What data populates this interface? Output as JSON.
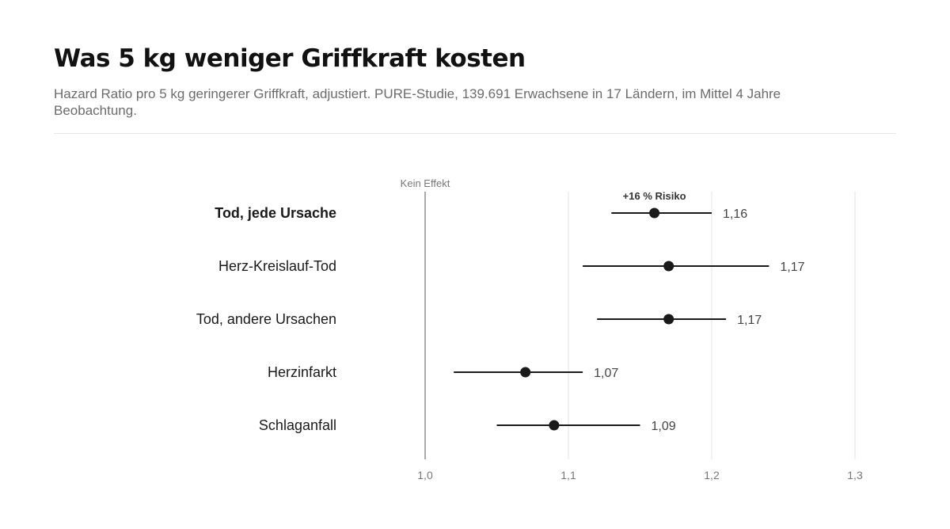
{
  "header": {
    "title": "Was 5 kg weniger Griffkraft kosten",
    "subtitle": "Hazard Ratio pro 5 kg geringerer Griffkraft, adjustiert. PURE-Studie, 139.691 Erwachsene in 17 Ländern, im Mittel 4 Jahre Beobachtung."
  },
  "chart_data": {
    "type": "forest",
    "xlim": [
      1.0,
      1.3
    ],
    "xticks": [
      1.0,
      1.1,
      1.2,
      1.3
    ],
    "xtick_labels": [
      "1,0",
      "1,1",
      "1,2",
      "1,3"
    ],
    "reference_line": {
      "value": 1.0,
      "label": "Kein Effekt"
    },
    "grid": true,
    "rows": [
      {
        "label": "Tod, jede Ursache",
        "estimate": 1.16,
        "lower": 1.13,
        "upper": 1.2,
        "value_label": "1,16",
        "highlight": true,
        "annotation": "+16 % Risiko"
      },
      {
        "label": "Herz-Kreislauf-Tod",
        "estimate": 1.17,
        "lower": 1.11,
        "upper": 1.24,
        "value_label": "1,17",
        "highlight": false
      },
      {
        "label": "Tod, andere Ursachen",
        "estimate": 1.17,
        "lower": 1.12,
        "upper": 1.21,
        "value_label": "1,17",
        "highlight": false
      },
      {
        "label": "Herzinfarkt",
        "estimate": 1.07,
        "lower": 1.02,
        "upper": 1.11,
        "value_label": "1,07",
        "highlight": false
      },
      {
        "label": "Schlaganfall",
        "estimate": 1.09,
        "lower": 1.05,
        "upper": 1.15,
        "value_label": "1,09",
        "highlight": false
      }
    ],
    "colors": {
      "mark": "#1a1a1a",
      "grid": "#e3e3e3",
      "reference": "#555555"
    }
  }
}
